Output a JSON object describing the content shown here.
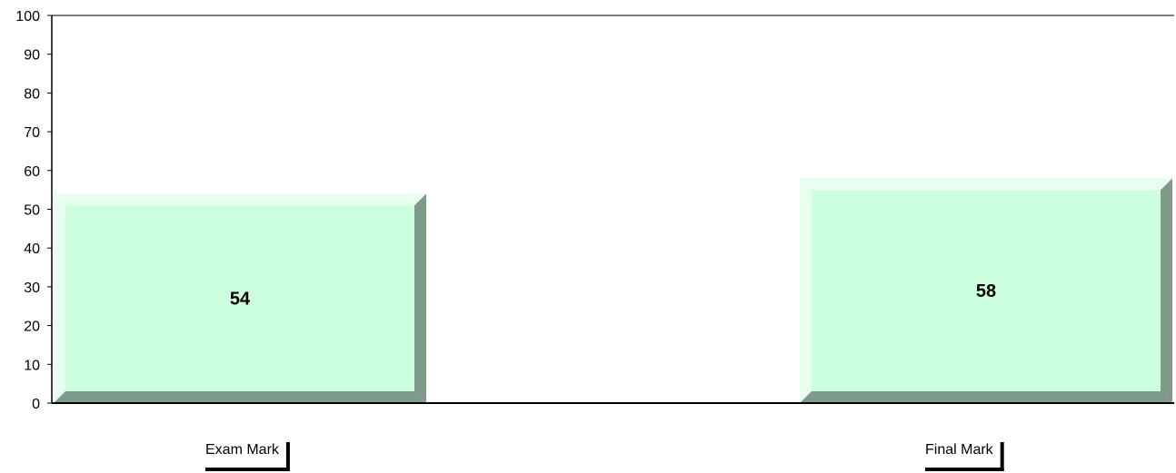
{
  "chart_data": {
    "type": "bar",
    "categories": [
      "Exam Mark",
      "Final Mark"
    ],
    "values": [
      54,
      58
    ],
    "data_labels": [
      "54",
      "58"
    ],
    "ylim": [
      0,
      100
    ],
    "y_ticks": [
      "0",
      "10",
      "20",
      "30",
      "40",
      "50",
      "60",
      "70",
      "80",
      "90",
      "100"
    ],
    "title": "",
    "xlabel": "",
    "ylabel": "",
    "grid": false,
    "bar_style": "3d-bevel",
    "colors": {
      "bar_face": "#ccffdd",
      "bar_highlight": "#e8fff0",
      "bar_shadow": "#7f9a89",
      "axis": "#000000",
      "background": "#ffffff"
    }
  }
}
